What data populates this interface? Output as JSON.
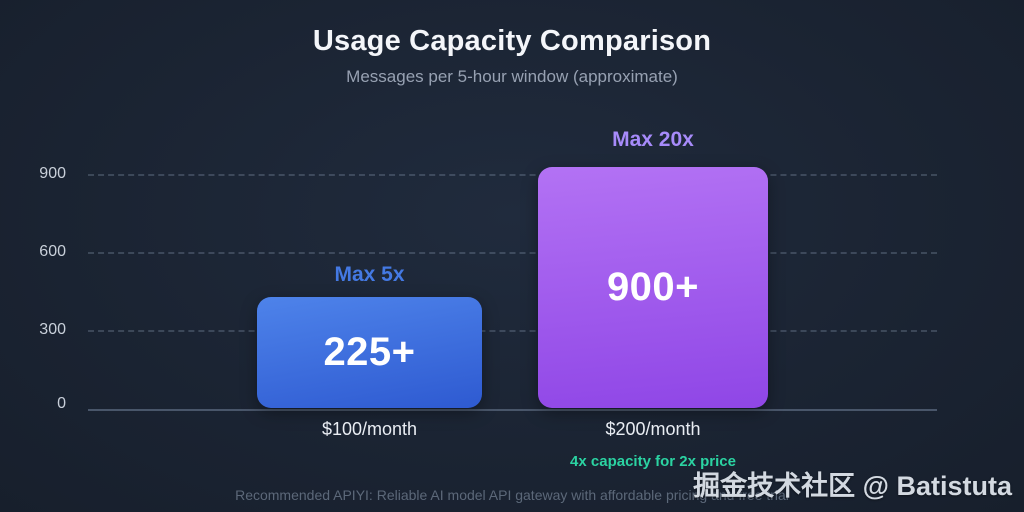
{
  "header": {
    "title": "Usage Capacity Comparison",
    "subtitle": "Messages per 5-hour window (approximate)"
  },
  "chart_data": {
    "type": "bar",
    "title": "Usage Capacity Comparison",
    "subtitle": "Messages per 5-hour window (approximate)",
    "categories": [
      "$100/month",
      "$200/month"
    ],
    "values": [
      225,
      900
    ],
    "value_labels": [
      "225+",
      "900+"
    ],
    "bar_annotations": [
      "Max 5x",
      "Max 20x"
    ],
    "xlabel": "",
    "ylabel": "",
    "yticks": [
      0,
      300,
      600,
      900
    ],
    "ylim": [
      0,
      950
    ],
    "grid": "horizontal-dashed",
    "legend_position": "none",
    "bar_colors": [
      "#3566d8",
      "#a35cef"
    ],
    "annotation": "4x capacity for 2x price"
  },
  "axis": {
    "ytick_labels": [
      "900",
      "600",
      "300",
      "0"
    ]
  },
  "bars": [
    {
      "annotation": "Max 5x",
      "value_label": "225+",
      "price": "$100/month"
    },
    {
      "annotation": "Max 20x",
      "value_label": "900+",
      "price": "$200/month"
    }
  ],
  "highlight": {
    "text": "4x capacity for 2x price",
    "color": "#2bd3a2"
  },
  "footer": {
    "text": "Recommended APIYI: Reliable AI model API gateway with affordable pricing and free trial"
  },
  "watermark": {
    "text": "掘金技术社区 @ Batistuta"
  },
  "colors": {
    "background": "#1b2433",
    "title": "#f4f6fa",
    "subtitle": "#97a1b2",
    "bar1_gradient_top": "#4e83ea",
    "bar1_gradient_bottom": "#2e5ad1",
    "bar2_gradient_top": "#b372f4",
    "bar2_gradient_bottom": "#8f46e6",
    "annotation1": "#4479e3",
    "annotation2": "#a78bfa",
    "highlight_green": "#2bd3a2",
    "gridline": "#8c9bb2",
    "axis_line": "#49566a",
    "footer_text": "#5c6879",
    "watermark_text": "#d3d9e1"
  }
}
